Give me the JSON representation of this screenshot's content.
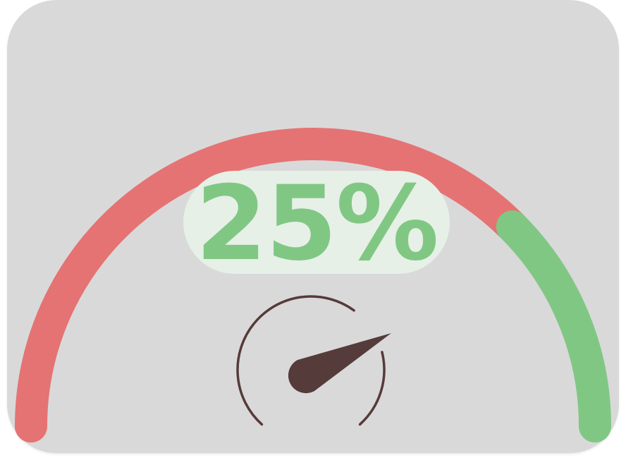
{
  "gauge": {
    "value_percent": 25,
    "label": "25%",
    "icon": "speedometer-icon",
    "colors": {
      "background": "#d9d9da",
      "remaining": "#e57373",
      "filled": "#81c784",
      "label_bg": "#e6f0e7",
      "icon": "#553b39"
    }
  }
}
